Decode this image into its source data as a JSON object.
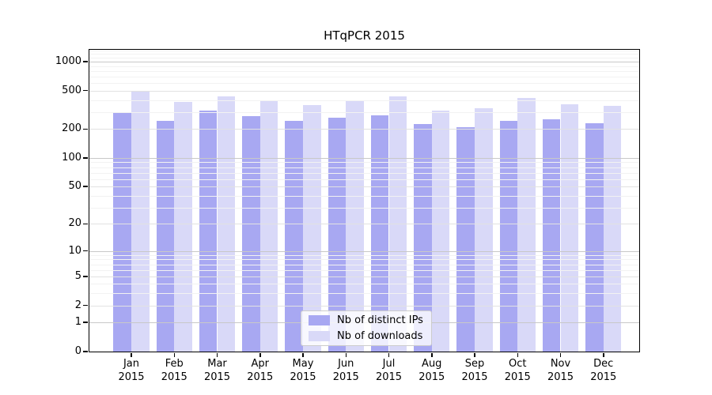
{
  "chart_data": {
    "type": "bar",
    "title": "HTqPCR 2015",
    "x": {
      "months": [
        "Jan",
        "Feb",
        "Mar",
        "Apr",
        "May",
        "Jun",
        "Jul",
        "Aug",
        "Sep",
        "Oct",
        "Nov",
        "Dec"
      ],
      "year": "2015"
    },
    "series": [
      {
        "name": "Nb of distinct IPs",
        "color": "#a8a8f2",
        "values": [
          293,
          245,
          312,
          270,
          243,
          262,
          275,
          226,
          210,
          244,
          252,
          231
        ]
      },
      {
        "name": "Nb of downloads",
        "color": "#d9d9f8",
        "values": [
          490,
          381,
          432,
          387,
          354,
          389,
          432,
          308,
          330,
          421,
          358,
          350
        ]
      }
    ],
    "y_axis": {
      "scale": "log1p",
      "axis_max": 1326,
      "tick_labels": [
        1000,
        500,
        200,
        100,
        50,
        20,
        10,
        5,
        2,
        1,
        0
      ],
      "major_gridlines": [
        1,
        10,
        100,
        1000
      ],
      "mid_gridlines": [
        2,
        5,
        20,
        50,
        200,
        500
      ],
      "minor_gridlines": [
        3,
        4,
        6,
        7,
        8,
        9,
        30,
        40,
        60,
        70,
        80,
        90,
        300,
        400,
        600,
        700,
        800,
        900,
        1100,
        1200,
        1300
      ]
    },
    "legend_position": "lower center",
    "grid": "horizontal, drawn above bars",
    "ylim": [
      0,
      1326
    ]
  },
  "colors": {
    "background": "#ffffff",
    "spine": "#000000",
    "grid_major": "#c8c8c8",
    "grid_mid": "#e2e2e2",
    "grid_minor": "#f2f2f2",
    "legend_border": "#cccccc"
  }
}
